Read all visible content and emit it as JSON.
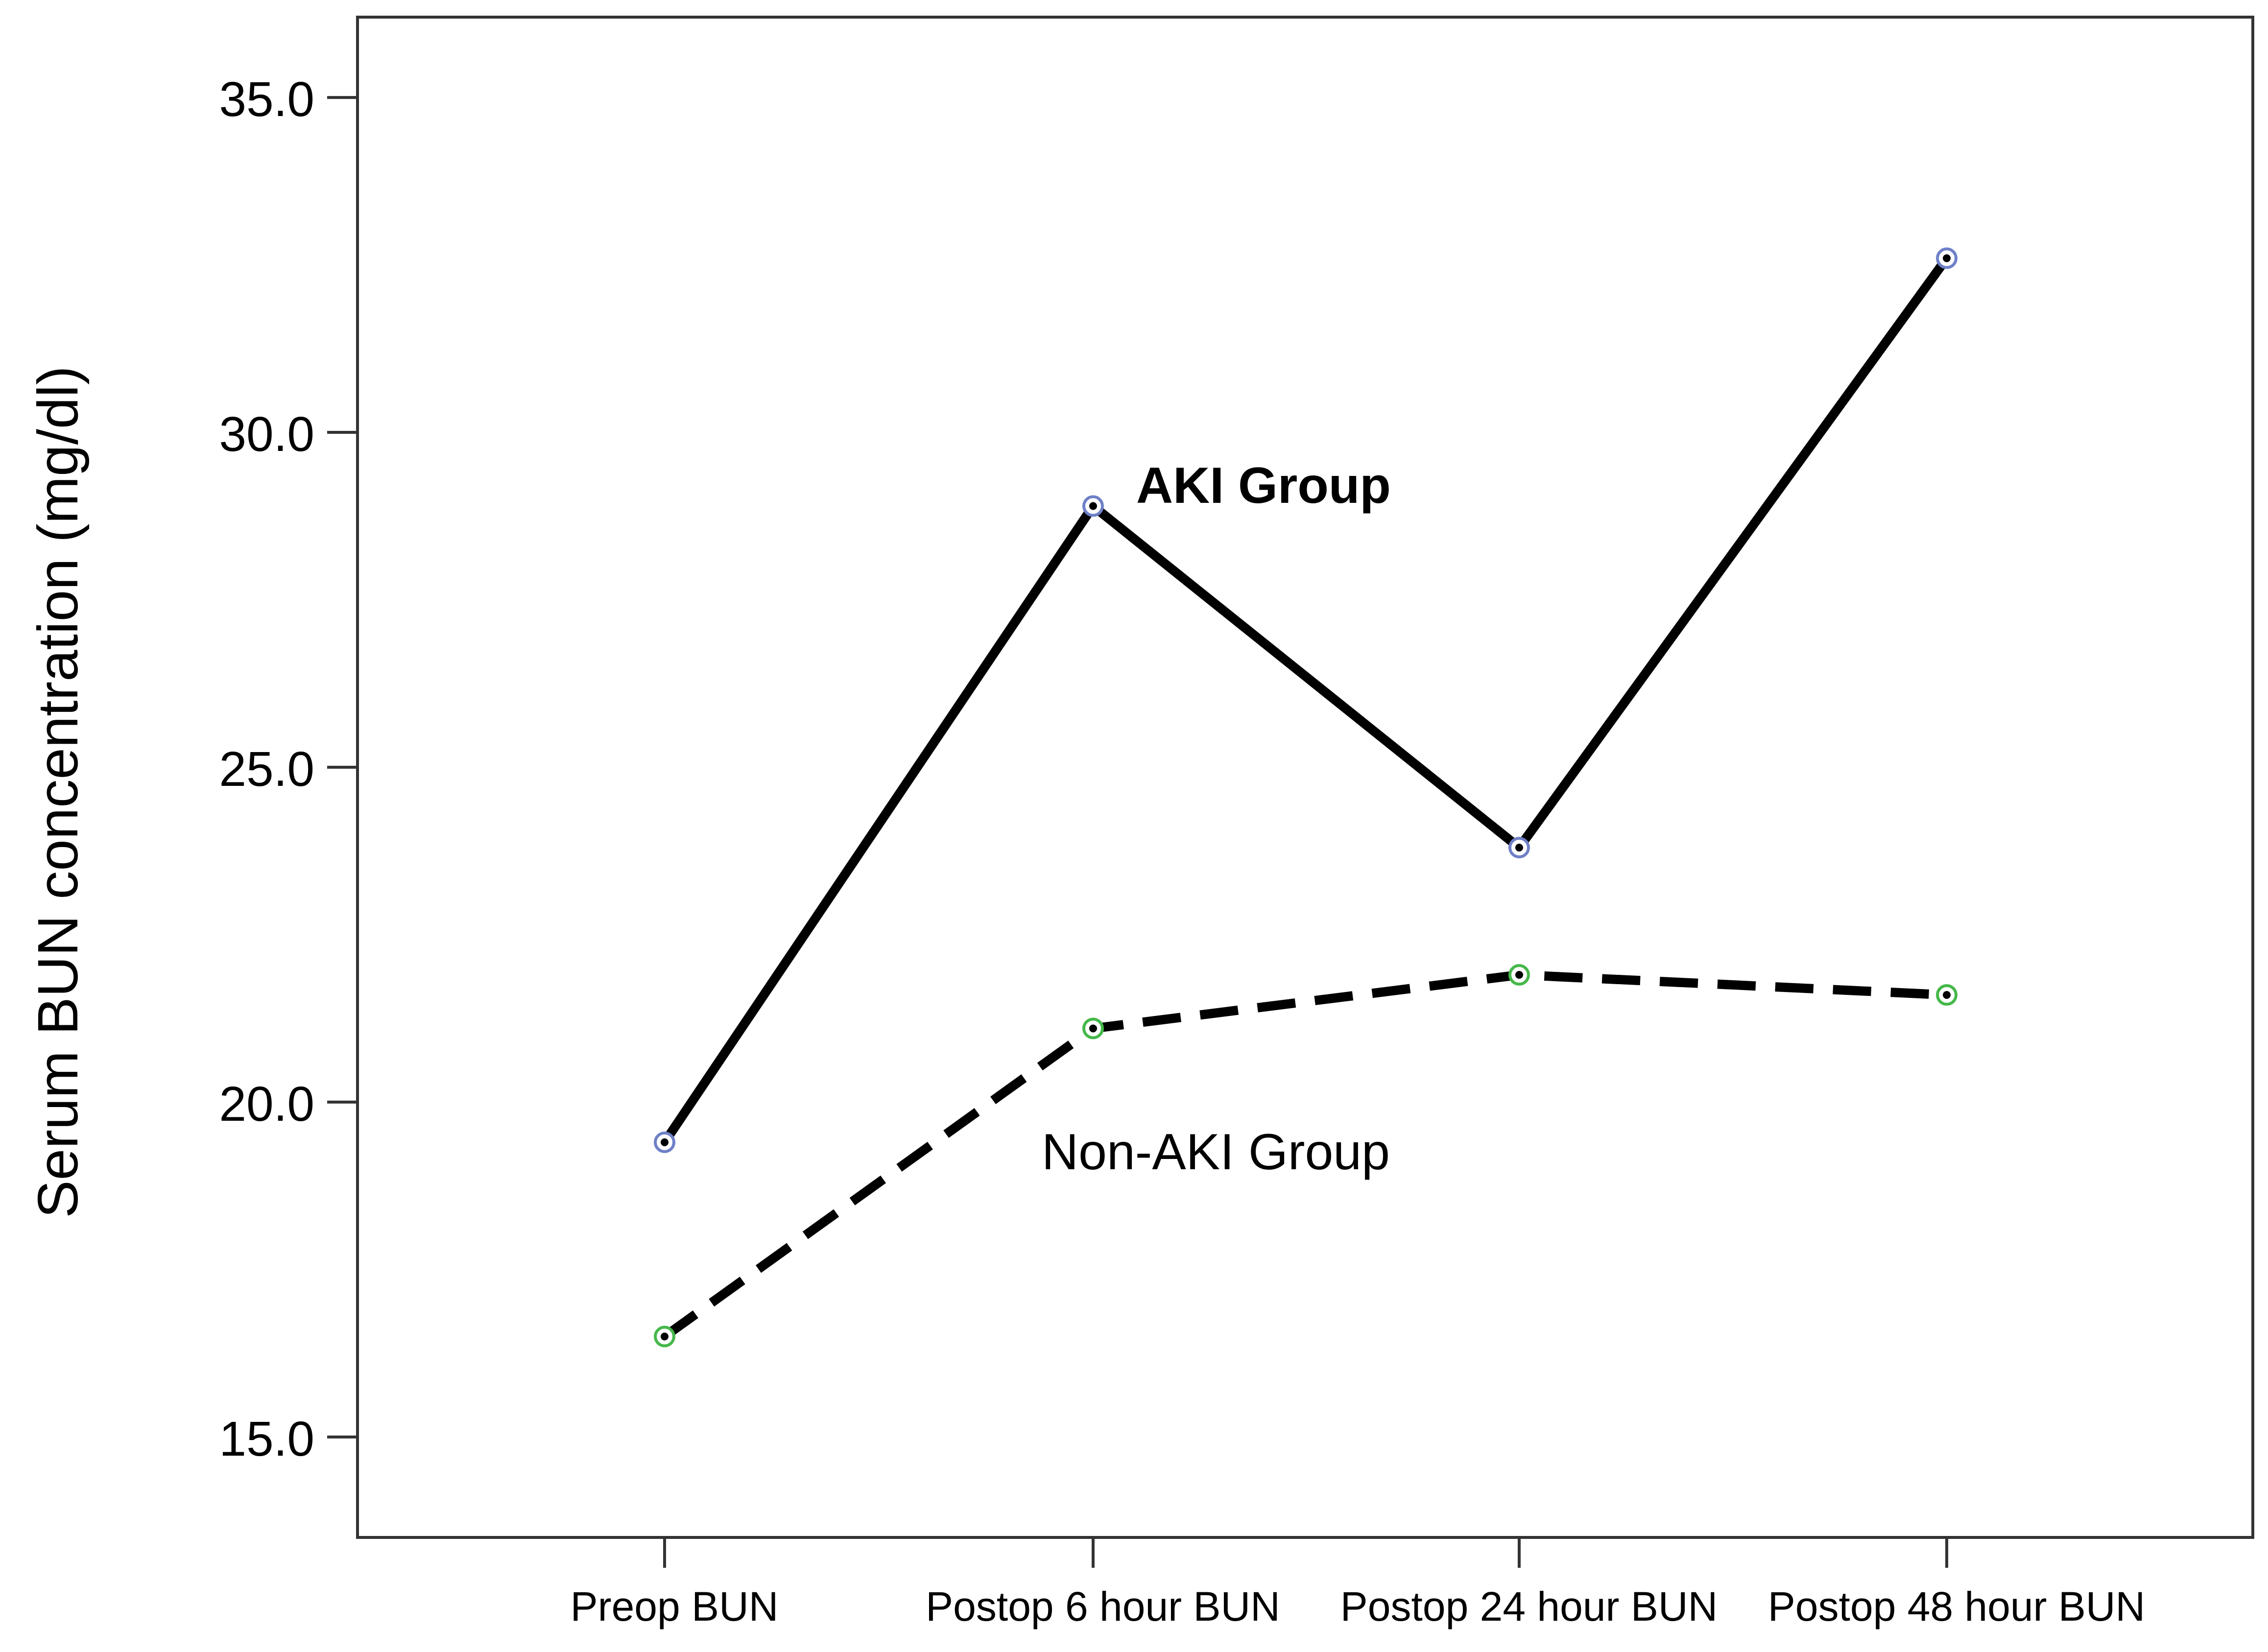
{
  "chart_data": {
    "type": "line",
    "title": "",
    "xlabel": "",
    "ylabel": "Serum BUN concentration (mg/dl)",
    "categories": [
      "Preop BUN",
      "Postop 6 hour BUN",
      "Postop 24 hour BUN",
      "Postop 48 hour BUN"
    ],
    "ylim": [
      13.5,
      36.2
    ],
    "yticks": [
      15.0,
      20.0,
      25.0,
      30.0,
      35.0
    ],
    "ytick_labels": [
      "15.0",
      "20.0",
      "25.0",
      "30.0",
      "35.0"
    ],
    "grid": false,
    "legend": "none",
    "series": [
      {
        "name": "AKI Group",
        "values": [
          19.4,
          28.9,
          23.8,
          32.6
        ],
        "line_style": "solid",
        "line_color": "#000000",
        "marker_color": "#6f80c8"
      },
      {
        "name": "Non-AKI Group",
        "values": [
          16.5,
          21.1,
          21.9,
          21.6
        ],
        "line_style": "dashed",
        "line_color": "#000000",
        "marker_color": "#45b84a"
      }
    ]
  }
}
